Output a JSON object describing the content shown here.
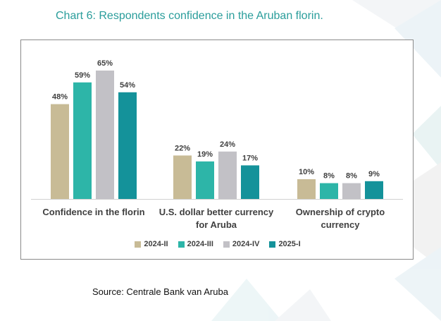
{
  "title": "Chart 6: Respondents confidence in the Aruban florin.",
  "source": "Source: Centrale Bank van Aruba",
  "chart_data": {
    "type": "bar",
    "categories": [
      "Confidence in the florin",
      "U.S. dollar better currency for Aruba",
      "Ownership of crypto currency"
    ],
    "series": [
      {
        "name": "2024-II",
        "values": [
          48,
          22,
          10
        ],
        "color": "#c8bb96"
      },
      {
        "name": "2024-III",
        "values": [
          59,
          19,
          8
        ],
        "color": "#2db5a8"
      },
      {
        "name": "2024-IV",
        "values": [
          65,
          24,
          8
        ],
        "color": "#c2c1c6"
      },
      {
        "name": "2025-I",
        "values": [
          54,
          17,
          9
        ],
        "color": "#14929a"
      }
    ],
    "value_suffix": "%",
    "ylim": [
      0,
      70
    ],
    "legend_position": "bottom",
    "grid": false
  }
}
